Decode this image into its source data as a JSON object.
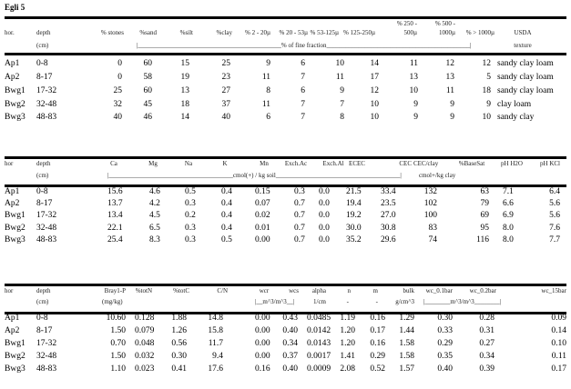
{
  "title": "Egli 5",
  "tables": [
    {
      "headers": [
        "hor.",
        "depth",
        "% stones",
        "%sand",
        "%silt",
        "%clay",
        "% 2 - 20µ",
        "% 20 - 53µ",
        "% 53-125µ",
        "% 125-250µ",
        [
          "% 250 -",
          "500µ"
        ],
        [
          "% 500 -",
          "1000µ"
        ],
        "% > 1000µ",
        "USDA"
      ],
      "units": [
        "(cm)",
        "|_____________________________________________% of fine fraction_____________________________________________|",
        "texture"
      ],
      "rows": [
        [
          "Ap1",
          "0-8",
          "0",
          "60",
          "15",
          "25",
          "9",
          "6",
          "10",
          "14",
          "11",
          "12",
          "12",
          "sandy clay loam"
        ],
        [
          "Ap2",
          "8-17",
          "0",
          "58",
          "19",
          "23",
          "11",
          "7",
          "11",
          "17",
          "13",
          "13",
          "5",
          "sandy clay loam"
        ],
        [
          "Bwg1",
          "17-32",
          "25",
          "60",
          "13",
          "27",
          "8",
          "6",
          "9",
          "12",
          "10",
          "11",
          "18",
          "sandy clay loam"
        ],
        [
          "Bwg2",
          "32-48",
          "32",
          "45",
          "18",
          "37",
          "11",
          "7",
          "7",
          "10",
          "9",
          "9",
          "9",
          "clay loam"
        ],
        [
          "Bwg3",
          "48-83",
          "40",
          "46",
          "14",
          "40",
          "6",
          "7",
          "8",
          "10",
          "9",
          "9",
          "10",
          "sandy clay"
        ]
      ]
    },
    {
      "headers": [
        "hor",
        "depth",
        "Ca",
        "Mg",
        "Na",
        "K",
        "Mn",
        "Exch.Ac",
        "Exch.Al",
        "ECEC",
        "CEC",
        "CEC/clay",
        "%BaseSat",
        "pH H2O",
        "pH KCl"
      ],
      "units": [
        "(cm)",
        "|_______________________________________cmol(+) / kg soil_______________________________________|",
        "cmol+/kg clay"
      ],
      "rows": [
        [
          "Ap1",
          "0-8",
          "15.6",
          "4.6",
          "0.5",
          "0.4",
          "0.15",
          "0.3",
          "0.0",
          "21.5",
          "33.4",
          "132",
          "63",
          "7.1",
          "6.4"
        ],
        [
          "Ap2",
          "8-17",
          "13.7",
          "4.2",
          "0.3",
          "0.4",
          "0.07",
          "0.7",
          "0.0",
          "19.4",
          "23.5",
          "102",
          "79",
          "6.6",
          "5.6"
        ],
        [
          "Bwg1",
          "17-32",
          "13.4",
          "4.5",
          "0.2",
          "0.4",
          "0.02",
          "0.7",
          "0.0",
          "19.2",
          "27.0",
          "100",
          "69",
          "6.9",
          "5.6"
        ],
        [
          "Bwg2",
          "32-48",
          "22.1",
          "6.5",
          "0.3",
          "0.4",
          "0.01",
          "0.7",
          "0.0",
          "30.0",
          "30.8",
          "83",
          "95",
          "8.0",
          "7.6"
        ],
        [
          "Bwg3",
          "48-83",
          "25.4",
          "8.3",
          "0.3",
          "0.5",
          "0.00",
          "0.7",
          "0.0",
          "35.2",
          "29.6",
          "74",
          "116",
          "8.0",
          "7.7"
        ]
      ]
    },
    {
      "headers": [
        "hor",
        "depth",
        "Bray1-P",
        "%totN",
        "%totC",
        "C/N",
        "wcr",
        "wcs",
        "alpha",
        "n",
        "m",
        "bulk",
        "wc_0.1bar",
        "wc_0.2bar",
        "wc_15bar"
      ],
      "units": [
        "(cm)",
        "(mg/kg)",
        "|__m^3/m^3__|",
        "1/cm",
        "-",
        "-",
        "g/cm^3",
        "|________m^3/m^3________|"
      ],
      "rows": [
        [
          "Ap1",
          "0-8",
          "10.60",
          "0.128",
          "1.88",
          "14.8",
          "0.00",
          "0.43",
          "0.0485",
          "1.19",
          "0.16",
          "1.29",
          "0.30",
          "0.28",
          "0.09"
        ],
        [
          "Ap2",
          "8-17",
          "1.50",
          "0.079",
          "1.26",
          "15.8",
          "0.00",
          "0.40",
          "0.0142",
          "1.20",
          "0.17",
          "1.44",
          "0.33",
          "0.31",
          "0.14"
        ],
        [
          "Bwg1",
          "17-32",
          "0.70",
          "0.048",
          "0.56",
          "11.7",
          "0.00",
          "0.34",
          "0.0143",
          "1.20",
          "0.16",
          "1.58",
          "0.29",
          "0.27",
          "0.10"
        ],
        [
          "Bwg2",
          "32-48",
          "1.50",
          "0.032",
          "0.30",
          "9.4",
          "0.00",
          "0.37",
          "0.0017",
          "1.41",
          "0.29",
          "1.58",
          "0.35",
          "0.34",
          "0.11"
        ],
        [
          "Bwg3",
          "48-83",
          "1.10",
          "0.023",
          "0.41",
          "17.6",
          "0.16",
          "0.40",
          "0.0009",
          "2.08",
          "0.52",
          "1.57",
          "0.40",
          "0.39",
          "0.17"
        ]
      ]
    }
  ]
}
